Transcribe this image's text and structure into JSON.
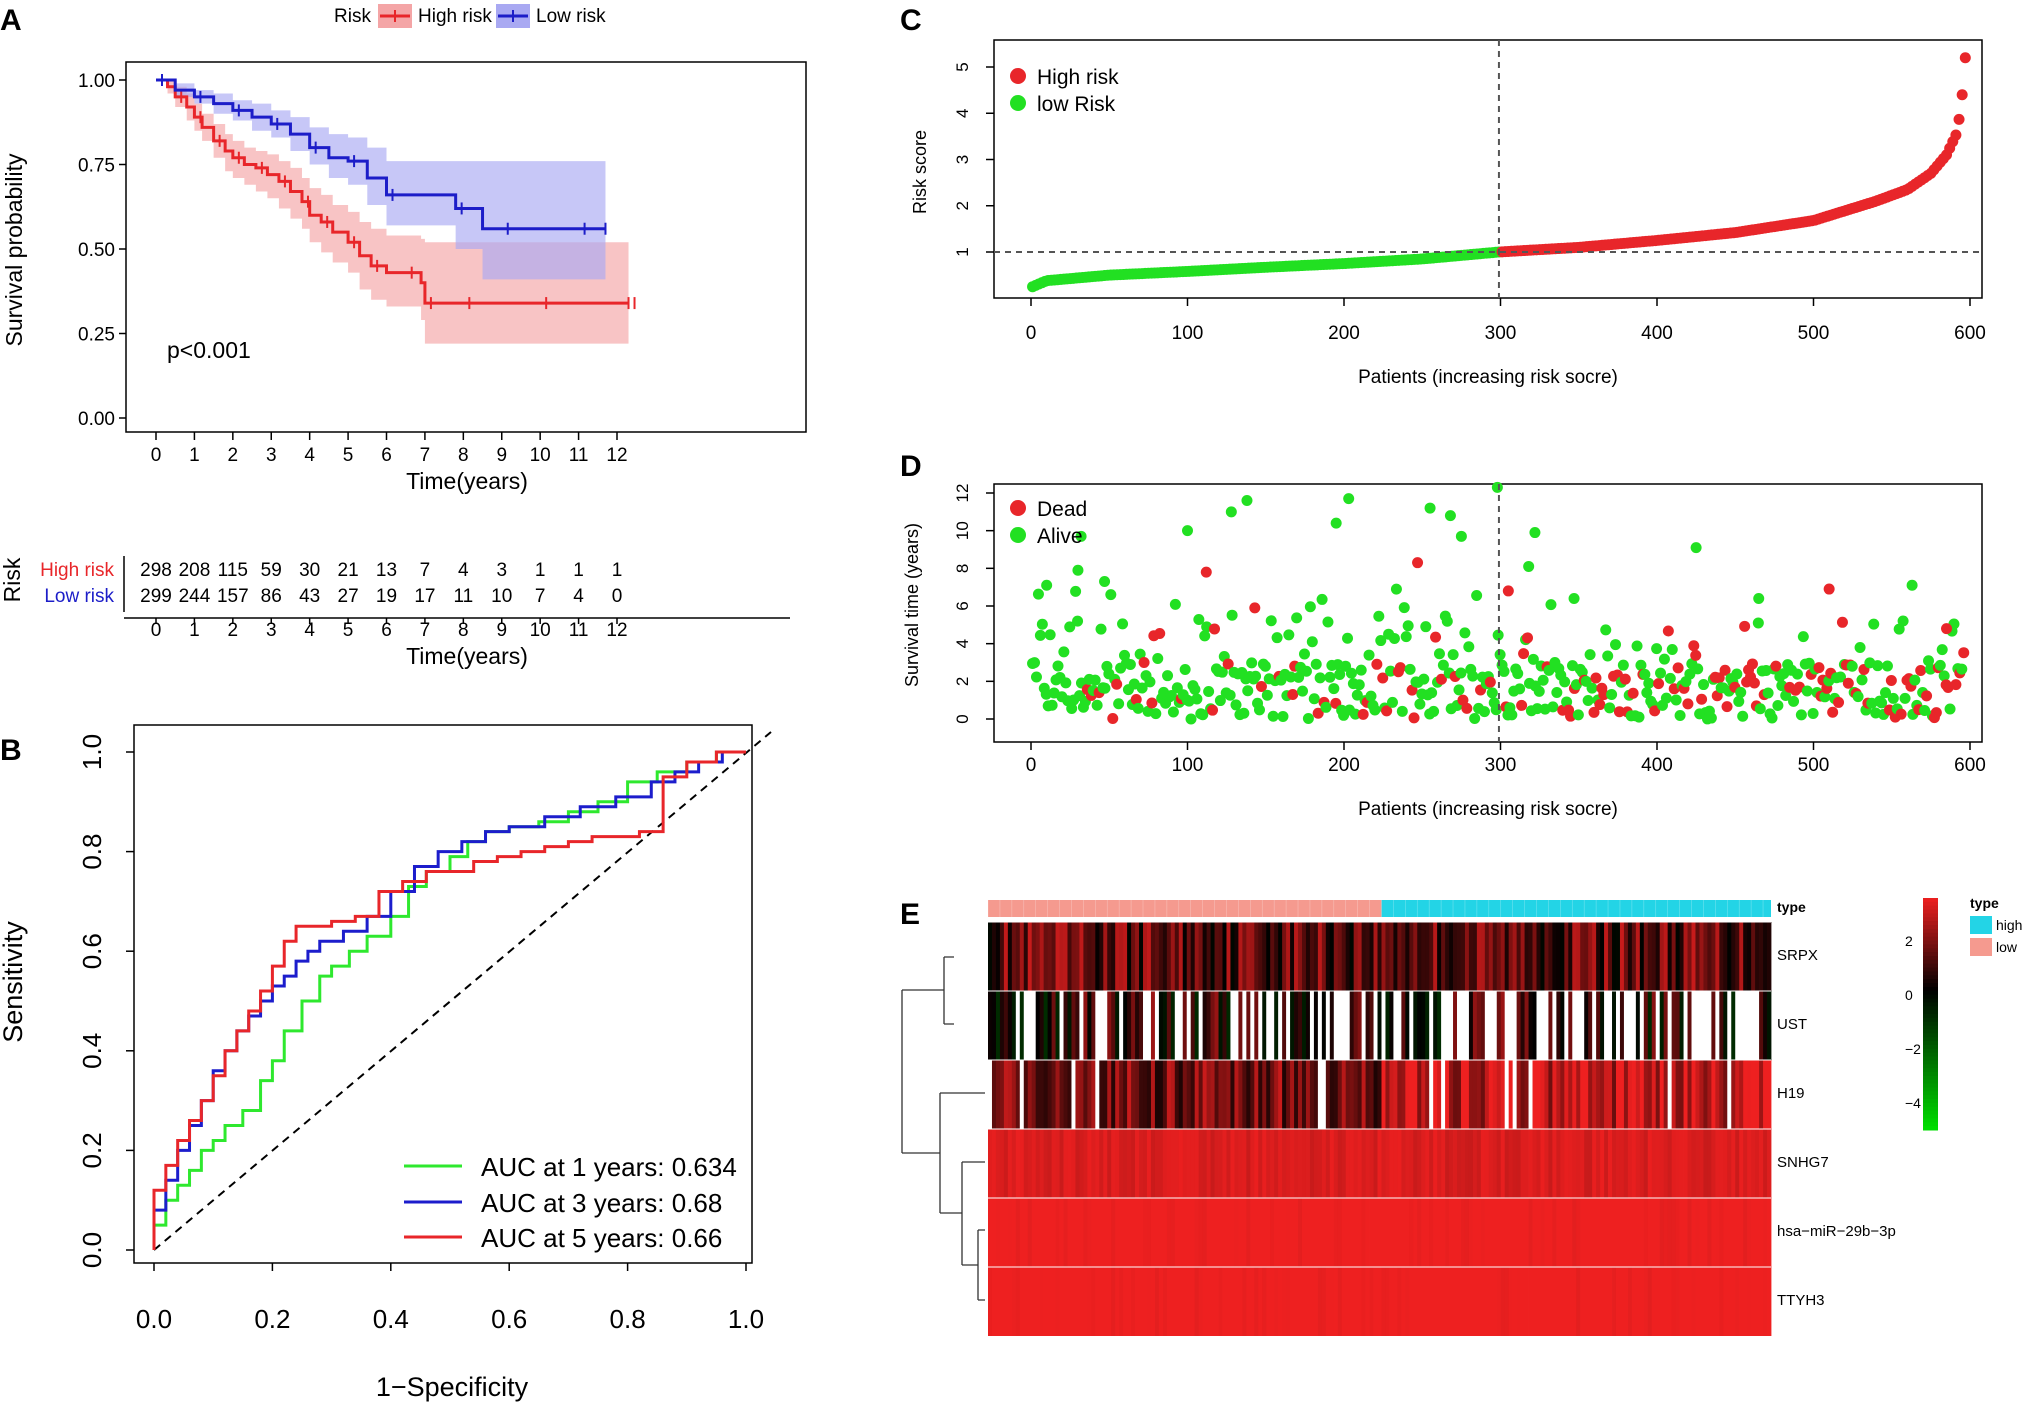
{
  "chart_data": [
    {
      "panel": "A",
      "type": "line",
      "subtype": "kaplan-meier",
      "legend_title": "Risk",
      "series": [
        {
          "name": "High risk",
          "color": "#e8262a",
          "ci_color": "#f4a5a6",
          "x": [
            0,
            0.3,
            0.5,
            0.8,
            1.0,
            1.2,
            1.5,
            1.8,
            2.0,
            2.3,
            2.6,
            2.9,
            3.2,
            3.5,
            3.8,
            4.0,
            4.3,
            4.6,
            5.0,
            5.3,
            5.6,
            6.0,
            6.5,
            6.9,
            7.0,
            7.5,
            8.0,
            9.0,
            10.0,
            11.0,
            12.3
          ],
          "y": [
            1.0,
            0.98,
            0.95,
            0.92,
            0.89,
            0.86,
            0.82,
            0.79,
            0.77,
            0.75,
            0.74,
            0.72,
            0.7,
            0.67,
            0.64,
            0.6,
            0.58,
            0.55,
            0.52,
            0.48,
            0.45,
            0.43,
            0.43,
            0.4,
            0.34,
            0.34,
            0.34,
            0.34,
            0.34,
            0.34,
            0.34
          ],
          "lower": [
            1.0,
            0.96,
            0.92,
            0.88,
            0.85,
            0.82,
            0.77,
            0.73,
            0.71,
            0.69,
            0.67,
            0.65,
            0.62,
            0.59,
            0.56,
            0.52,
            0.49,
            0.46,
            0.43,
            0.38,
            0.35,
            0.33,
            0.33,
            0.29,
            0.22,
            0.22,
            0.22,
            0.22,
            0.22,
            0.22,
            0.22
          ],
          "upper": [
            1.0,
            1.0,
            0.98,
            0.96,
            0.93,
            0.9,
            0.87,
            0.84,
            0.82,
            0.8,
            0.79,
            0.78,
            0.76,
            0.74,
            0.71,
            0.68,
            0.66,
            0.63,
            0.61,
            0.58,
            0.56,
            0.54,
            0.54,
            0.53,
            0.52,
            0.52,
            0.52,
            0.52,
            0.52,
            0.52,
            0.52
          ]
        },
        {
          "name": "Low risk",
          "color": "#1c1dc8",
          "ci_color": "#a9a9f2",
          "x": [
            0,
            0.5,
            1.0,
            1.5,
            2.0,
            2.5,
            3.0,
            3.5,
            4.0,
            4.5,
            5.0,
            5.5,
            6.0,
            7.0,
            7.8,
            8.5,
            9.0,
            10.0,
            11.0,
            11.7
          ],
          "y": [
            1.0,
            0.97,
            0.95,
            0.93,
            0.91,
            0.89,
            0.87,
            0.84,
            0.8,
            0.77,
            0.76,
            0.71,
            0.66,
            0.66,
            0.62,
            0.56,
            0.56,
            0.56,
            0.56,
            0.56
          ],
          "lower": [
            1.0,
            0.95,
            0.93,
            0.9,
            0.88,
            0.85,
            0.83,
            0.79,
            0.75,
            0.71,
            0.69,
            0.63,
            0.57,
            0.57,
            0.5,
            0.41,
            0.41,
            0.41,
            0.41,
            0.41
          ],
          "upper": [
            1.0,
            0.99,
            0.97,
            0.96,
            0.94,
            0.93,
            0.91,
            0.89,
            0.86,
            0.84,
            0.83,
            0.8,
            0.76,
            0.76,
            0.76,
            0.76,
            0.76,
            0.76,
            0.76,
            0.76
          ]
        }
      ],
      "xlabel": "Time(years)",
      "ylabel": "Survival probability",
      "xticks": [
        "0",
        "1",
        "2",
        "3",
        "4",
        "5",
        "6",
        "7",
        "8",
        "9",
        "10",
        "11",
        "12"
      ],
      "yticks": [
        "0.00",
        "0.25",
        "0.50",
        "0.75",
        "1.00"
      ],
      "xlim": [
        0,
        12.3
      ],
      "ylim": [
        0,
        1
      ],
      "annotation": "p<0.001",
      "risk_table": {
        "ylabel": "Risk",
        "xlabel": "Time(years)",
        "rows": [
          {
            "label": "High risk",
            "color": "#e8262a",
            "values": [
              "298",
              "208",
              "115",
              "59",
              "30",
              "21",
              "13",
              "7",
              "4",
              "3",
              "1",
              "1",
              "1"
            ]
          },
          {
            "label": "Low risk",
            "color": "#1c1dc8",
            "values": [
              "299",
              "244",
              "157",
              "86",
              "43",
              "27",
              "19",
              "17",
              "11",
              "10",
              "7",
              "4",
              "0"
            ]
          }
        ]
      }
    },
    {
      "panel": "B",
      "type": "line",
      "subtype": "roc",
      "xlabel": "1−Specificity",
      "ylabel": "Sensitivity",
      "xticks": [
        "0.0",
        "0.2",
        "0.4",
        "0.6",
        "0.8",
        "1.0"
      ],
      "yticks": [
        "0.0",
        "0.2",
        "0.4",
        "0.6",
        "0.8",
        "1.0"
      ],
      "xlim": [
        0,
        1
      ],
      "ylim": [
        0,
        1
      ],
      "series": [
        {
          "name": "AUC at 1 years: 0.634",
          "color": "#2ee82e",
          "x": [
            0,
            0.02,
            0.04,
            0.06,
            0.08,
            0.1,
            0.12,
            0.15,
            0.18,
            0.2,
            0.22,
            0.25,
            0.28,
            0.3,
            0.33,
            0.36,
            0.4,
            0.43,
            0.46,
            0.5,
            0.53,
            0.56,
            0.6,
            0.65,
            0.7,
            0.75,
            0.8,
            0.85,
            0.9,
            0.95,
            1.0
          ],
          "x_note": "false positive rate",
          "y": [
            0,
            0.05,
            0.1,
            0.13,
            0.16,
            0.2,
            0.22,
            0.25,
            0.28,
            0.34,
            0.38,
            0.44,
            0.5,
            0.55,
            0.57,
            0.6,
            0.63,
            0.67,
            0.73,
            0.76,
            0.79,
            0.82,
            0.84,
            0.85,
            0.86,
            0.88,
            0.9,
            0.94,
            0.96,
            0.98,
            1.0
          ]
        },
        {
          "name": "AUC at 3 years: 0.68",
          "color": "#1c1dcc",
          "x": [
            0,
            0.02,
            0.04,
            0.06,
            0.08,
            0.1,
            0.12,
            0.14,
            0.16,
            0.18,
            0.2,
            0.22,
            0.24,
            0.26,
            0.28,
            0.32,
            0.36,
            0.4,
            0.44,
            0.48,
            0.52,
            0.56,
            0.6,
            0.66,
            0.72,
            0.78,
            0.84,
            0.88,
            0.92,
            0.96,
            1.0
          ],
          "y": [
            0,
            0.08,
            0.14,
            0.2,
            0.25,
            0.3,
            0.36,
            0.4,
            0.44,
            0.47,
            0.5,
            0.53,
            0.55,
            0.58,
            0.6,
            0.62,
            0.64,
            0.67,
            0.72,
            0.77,
            0.8,
            0.82,
            0.84,
            0.85,
            0.87,
            0.89,
            0.91,
            0.94,
            0.96,
            0.98,
            1.0
          ]
        },
        {
          "name": "AUC at 5 years: 0.66",
          "color": "#e8262a",
          "x": [
            0,
            0.02,
            0.04,
            0.06,
            0.08,
            0.1,
            0.12,
            0.14,
            0.16,
            0.18,
            0.2,
            0.22,
            0.24,
            0.26,
            0.3,
            0.34,
            0.38,
            0.42,
            0.46,
            0.5,
            0.54,
            0.58,
            0.62,
            0.66,
            0.7,
            0.74,
            0.78,
            0.82,
            0.86,
            0.9,
            0.95,
            1.0
          ],
          "y": [
            0,
            0.12,
            0.17,
            0.22,
            0.26,
            0.3,
            0.35,
            0.4,
            0.44,
            0.48,
            0.52,
            0.57,
            0.62,
            0.65,
            0.65,
            0.66,
            0.67,
            0.72,
            0.74,
            0.76,
            0.76,
            0.78,
            0.79,
            0.8,
            0.81,
            0.82,
            0.83,
            0.83,
            0.84,
            0.95,
            0.98,
            1.0
          ]
        }
      ],
      "reference": "diagonal"
    },
    {
      "panel": "C",
      "type": "scatter",
      "xlabel": "Patients (increasing risk socre)",
      "ylabel": "Risk score",
      "xticks": [
        "0",
        "100",
        "200",
        "300",
        "400",
        "500",
        "600"
      ],
      "yticks": [
        "1",
        "2",
        "3",
        "4",
        "5"
      ],
      "xlim": [
        -25,
        625
      ],
      "ylim": [
        0.1,
        5.3
      ],
      "cutoff": {
        "x": 299,
        "y": 1
      },
      "series": [
        {
          "name": "High risk",
          "color": "#e8262a"
        },
        {
          "name": "low Risk",
          "color": "#22e022"
        }
      ],
      "curve_anchors": {
        "x": [
          1,
          10,
          50,
          100,
          150,
          200,
          250,
          299,
          350,
          400,
          450,
          500,
          540,
          560,
          575,
          585,
          592,
          595,
          597
        ],
        "y": [
          0.25,
          0.38,
          0.5,
          0.58,
          0.67,
          0.75,
          0.85,
          1.0,
          1.1,
          1.25,
          1.42,
          1.68,
          2.1,
          2.35,
          2.7,
          3.1,
          3.6,
          4.4,
          5.2
        ]
      },
      "n_patients": 597
    },
    {
      "panel": "D",
      "type": "scatter",
      "xlabel": "Patients (increasing risk socre)",
      "ylabel": "Survival time (years)",
      "xticks": [
        "0",
        "100",
        "200",
        "300",
        "400",
        "500",
        "600"
      ],
      "yticks": [
        "0",
        "2",
        "4",
        "6",
        "8",
        "10",
        "12"
      ],
      "xlim": [
        -25,
        625
      ],
      "ylim": [
        -0.5,
        12.5
      ],
      "cutoff": {
        "x": 299
      },
      "series": [
        {
          "name": "Dead",
          "color": "#e8262a"
        },
        {
          "name": "Alive",
          "color": "#22e022"
        }
      ],
      "highlighted_points": [
        {
          "x": 10,
          "y": 7.1,
          "status": "Alive"
        },
        {
          "x": 30,
          "y": 7.9,
          "status": "Alive"
        },
        {
          "x": 32,
          "y": 9.7,
          "status": "Alive"
        },
        {
          "x": 47,
          "y": 7.3,
          "status": "Alive"
        },
        {
          "x": 100,
          "y": 10.0,
          "status": "Alive"
        },
        {
          "x": 112,
          "y": 7.8,
          "status": "Dead"
        },
        {
          "x": 128,
          "y": 11.0,
          "status": "Alive"
        },
        {
          "x": 138,
          "y": 11.6,
          "status": "Alive"
        },
        {
          "x": 143,
          "y": 5.9,
          "status": "Dead"
        },
        {
          "x": 195,
          "y": 10.4,
          "status": "Alive"
        },
        {
          "x": 203,
          "y": 11.7,
          "status": "Alive"
        },
        {
          "x": 247,
          "y": 8.3,
          "status": "Dead"
        },
        {
          "x": 255,
          "y": 11.2,
          "status": "Alive"
        },
        {
          "x": 268,
          "y": 10.8,
          "status": "Alive"
        },
        {
          "x": 275,
          "y": 9.7,
          "status": "Alive"
        },
        {
          "x": 298,
          "y": 12.3,
          "status": "Alive"
        },
        {
          "x": 305,
          "y": 6.8,
          "status": "Dead"
        },
        {
          "x": 318,
          "y": 8.1,
          "status": "Alive"
        },
        {
          "x": 322,
          "y": 9.9,
          "status": "Alive"
        },
        {
          "x": 347,
          "y": 6.4,
          "status": "Alive"
        },
        {
          "x": 425,
          "y": 9.1,
          "status": "Alive"
        },
        {
          "x": 465,
          "y": 6.4,
          "status": "Alive"
        },
        {
          "x": 510,
          "y": 6.9,
          "status": "Dead"
        },
        {
          "x": 563,
          "y": 7.1,
          "status": "Alive"
        },
        {
          "x": 585,
          "y": 4.8,
          "status": "Dead"
        }
      ],
      "n_patients": 597
    },
    {
      "panel": "E",
      "type": "heatmap",
      "rows": [
        "SRPX",
        "UST",
        "H19",
        "SNHG7",
        "hsa−miR−29b−3p",
        "TTYH3"
      ],
      "annotation_track": {
        "name": "type",
        "groups": [
          {
            "label": "low",
            "color": "#f59a8f"
          },
          {
            "label": "high",
            "color": "#23d4e6"
          }
        ]
      },
      "colorbar": {
        "ticks": [
          "2",
          "0",
          "−2",
          "−4"
        ],
        "range": [
          -5,
          3.3
        ],
        "colors": [
          "#22e022",
          "#000000",
          "#ee2020"
        ]
      },
      "row_mean_levels": [
        1.3,
        0.6,
        2.6,
        3.0,
        3.4,
        3.4
      ],
      "n_columns": 597
    }
  ],
  "panel_labels": [
    "A",
    "B",
    "C",
    "D",
    "E"
  ]
}
